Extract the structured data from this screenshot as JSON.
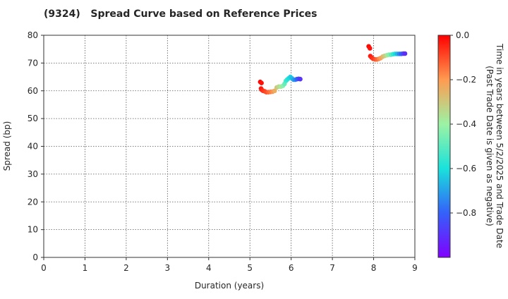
{
  "chart_data": {
    "type": "scatter",
    "title": "(9324)   Spread Curve based on Reference Prices",
    "xlabel": "Duration (years)",
    "ylabel": "Spread (bp)",
    "xlim": [
      0,
      9
    ],
    "ylim": [
      0,
      80
    ],
    "xticks": [
      "0",
      "1",
      "2",
      "3",
      "4",
      "5",
      "6",
      "7",
      "8",
      "9"
    ],
    "yticks": [
      "0",
      "10",
      "20",
      "30",
      "40",
      "50",
      "60",
      "70",
      "80"
    ],
    "grid": true,
    "colorbar": {
      "label": "Time in years between 5/2/2025 and Trade Date\n(Past Trade Date is given as negative)",
      "range": [
        -1.0,
        0.0
      ],
      "ticks": [
        "0.0",
        "−0.2",
        "−0.4",
        "−0.6",
        "−0.8"
      ],
      "tick_values": [
        0.0,
        -0.2,
        -0.4,
        -0.6,
        -0.8
      ],
      "colormap": "rainbow"
    },
    "series": [
      {
        "points": [
          {
            "x": 5.25,
            "y": 63.2,
            "c": -0.01
          },
          {
            "x": 5.28,
            "y": 62.8,
            "c": -0.02
          },
          {
            "x": 5.27,
            "y": 60.8,
            "c": -0.03
          },
          {
            "x": 5.29,
            "y": 60.3,
            "c": -0.04
          },
          {
            "x": 5.32,
            "y": 60.0,
            "c": -0.06
          },
          {
            "x": 5.36,
            "y": 59.8,
            "c": -0.08
          },
          {
            "x": 5.4,
            "y": 59.5,
            "c": -0.1
          },
          {
            "x": 5.45,
            "y": 59.5,
            "c": -0.13
          },
          {
            "x": 5.5,
            "y": 59.6,
            "c": -0.16
          },
          {
            "x": 5.55,
            "y": 59.7,
            "c": -0.19
          },
          {
            "x": 5.6,
            "y": 60.0,
            "c": -0.24
          },
          {
            "x": 5.65,
            "y": 61.2,
            "c": -0.3
          },
          {
            "x": 5.7,
            "y": 61.5,
            "c": -0.34
          },
          {
            "x": 5.75,
            "y": 61.5,
            "c": -0.38
          },
          {
            "x": 5.8,
            "y": 61.8,
            "c": -0.43
          },
          {
            "x": 5.84,
            "y": 62.5,
            "c": -0.48
          },
          {
            "x": 5.87,
            "y": 63.5,
            "c": -0.52
          },
          {
            "x": 5.9,
            "y": 64.0,
            "c": -0.56
          },
          {
            "x": 5.94,
            "y": 64.5,
            "c": -0.6
          },
          {
            "x": 5.98,
            "y": 65.0,
            "c": -0.63
          },
          {
            "x": 6.02,
            "y": 64.5,
            "c": -0.66
          },
          {
            "x": 6.06,
            "y": 64.0,
            "c": -0.7
          },
          {
            "x": 6.1,
            "y": 64.0,
            "c": -0.74
          },
          {
            "x": 6.14,
            "y": 64.2,
            "c": -0.79
          },
          {
            "x": 6.18,
            "y": 64.3,
            "c": -0.84
          },
          {
            "x": 6.22,
            "y": 64.2,
            "c": -0.89
          }
        ]
      },
      {
        "points": [
          {
            "x": 7.88,
            "y": 76.0,
            "c": -0.01
          },
          {
            "x": 7.91,
            "y": 75.3,
            "c": -0.02
          },
          {
            "x": 7.92,
            "y": 72.5,
            "c": -0.03
          },
          {
            "x": 7.95,
            "y": 72.0,
            "c": -0.05
          },
          {
            "x": 7.99,
            "y": 71.5,
            "c": -0.07
          },
          {
            "x": 8.04,
            "y": 71.3,
            "c": -0.1
          },
          {
            "x": 8.08,
            "y": 71.3,
            "c": -0.13
          },
          {
            "x": 8.13,
            "y": 71.5,
            "c": -0.17
          },
          {
            "x": 8.17,
            "y": 71.8,
            "c": -0.21
          },
          {
            "x": 8.22,
            "y": 72.3,
            "c": -0.26
          },
          {
            "x": 8.27,
            "y": 72.6,
            "c": -0.31
          },
          {
            "x": 8.32,
            "y": 72.8,
            "c": -0.37
          },
          {
            "x": 8.37,
            "y": 73.0,
            "c": -0.43
          },
          {
            "x": 8.42,
            "y": 73.0,
            "c": -0.49
          },
          {
            "x": 8.47,
            "y": 73.2,
            "c": -0.55
          },
          {
            "x": 8.52,
            "y": 73.3,
            "c": -0.61
          },
          {
            "x": 8.57,
            "y": 73.3,
            "c": -0.67
          },
          {
            "x": 8.62,
            "y": 73.3,
            "c": -0.74
          },
          {
            "x": 8.67,
            "y": 73.3,
            "c": -0.8
          },
          {
            "x": 8.72,
            "y": 73.4,
            "c": -0.86
          },
          {
            "x": 8.76,
            "y": 73.4,
            "c": -0.91
          }
        ]
      }
    ]
  }
}
